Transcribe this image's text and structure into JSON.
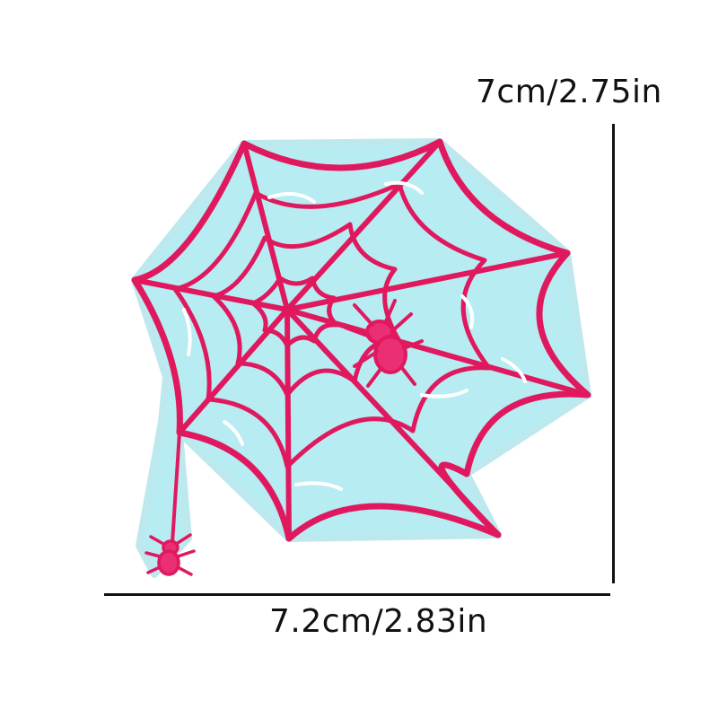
{
  "product": {
    "subject": "spider web embroidered patch with two spiders",
    "colors": {
      "thread_pink": "#e0195f",
      "fill_light_blue": "#a9e6ee",
      "highlight_white": "#ffffff",
      "background": "#ffffff",
      "dimension_lines": "#111111"
    }
  },
  "dimensions": {
    "height_label": "7cm/2.75in",
    "width_label": "7.2cm/2.83in"
  }
}
